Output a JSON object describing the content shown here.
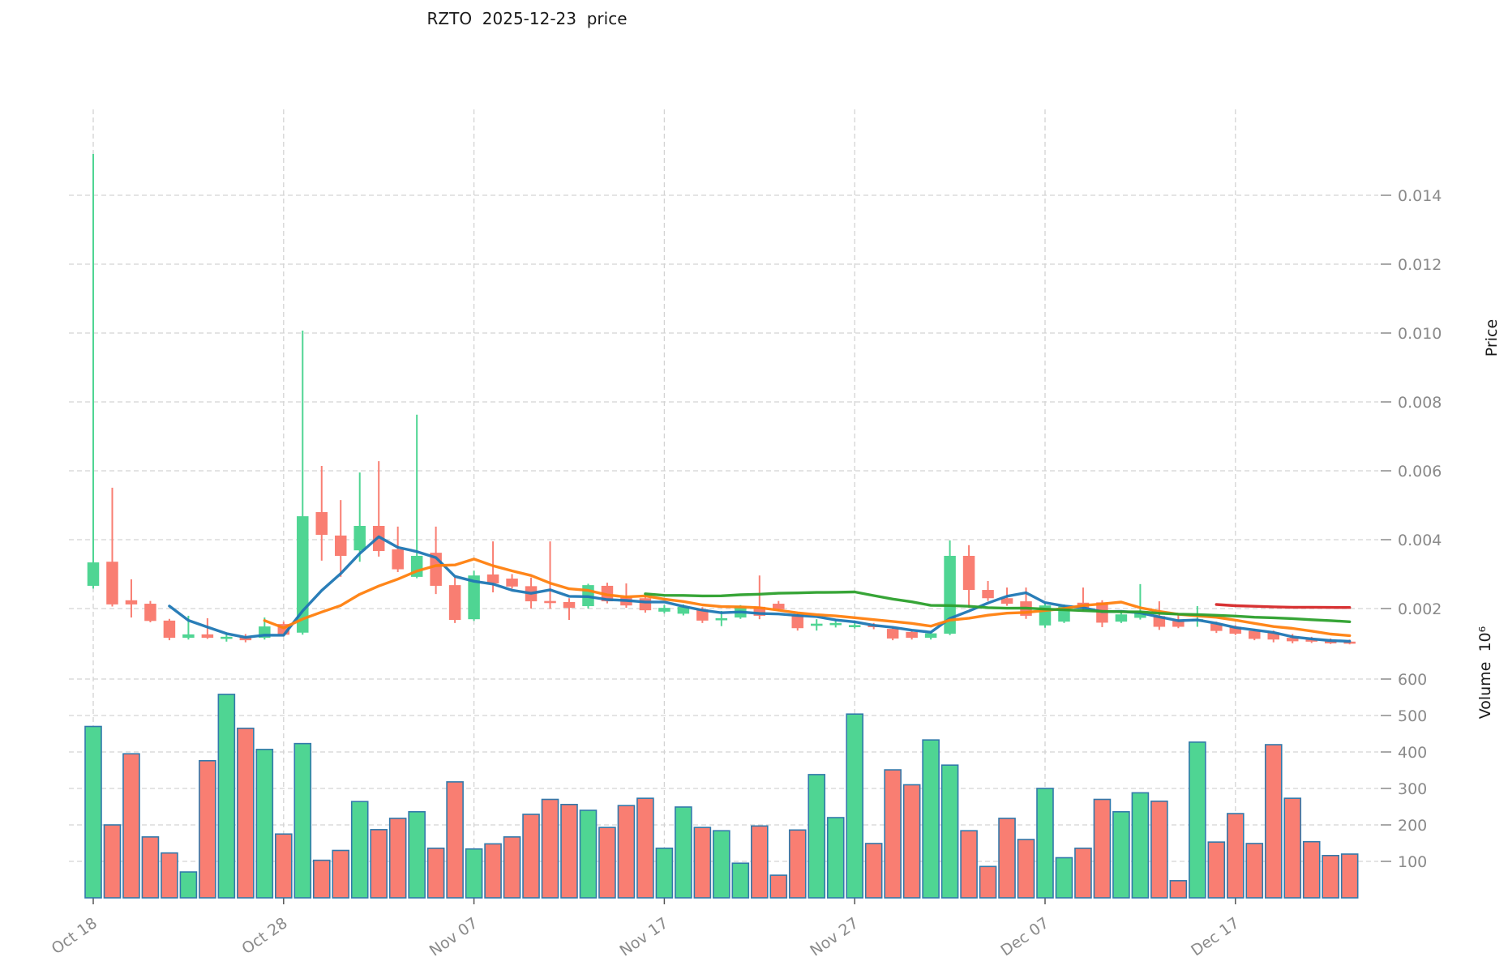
{
  "header": {
    "title": "RZTO  2025-12-23  price"
  },
  "chart_data": {
    "type": "candlestick",
    "title": "RZTO  2025-12-23  price",
    "grid": true,
    "legend": false,
    "x_axis": {
      "tick_labels": [
        "Oct 18",
        "Oct 28",
        "Nov 07",
        "Nov 17",
        "Nov 27",
        "Dec 07",
        "Dec 17"
      ],
      "tick_indices": [
        0,
        10,
        20,
        30,
        40,
        50,
        60
      ]
    },
    "price_axis": {
      "label": "Price",
      "ticks": [
        0.002,
        0.004,
        0.006,
        0.008,
        0.01,
        0.012,
        0.014
      ],
      "range": [
        0.0009,
        0.0165
      ],
      "side": "right"
    },
    "volume_axis": {
      "label": "Volume  10⁶",
      "ticks": [
        100,
        200,
        300,
        400,
        500,
        600
      ],
      "unit": "millions",
      "range": [
        0,
        680
      ],
      "side": "right"
    },
    "dates": [
      "2025-10-18",
      "2025-10-19",
      "2025-10-20",
      "2025-10-21",
      "2025-10-22",
      "2025-10-23",
      "2025-10-24",
      "2025-10-25",
      "2025-10-26",
      "2025-10-27",
      "2025-10-28",
      "2025-10-29",
      "2025-10-30",
      "2025-10-31",
      "2025-11-01",
      "2025-11-02",
      "2025-11-03",
      "2025-11-04",
      "2025-11-05",
      "2025-11-06",
      "2025-11-07",
      "2025-11-08",
      "2025-11-09",
      "2025-11-10",
      "2025-11-11",
      "2025-11-12",
      "2025-11-13",
      "2025-11-14",
      "2025-11-15",
      "2025-11-16",
      "2025-11-17",
      "2025-11-18",
      "2025-11-19",
      "2025-11-20",
      "2025-11-21",
      "2025-11-22",
      "2025-11-23",
      "2025-11-24",
      "2025-11-25",
      "2025-11-26",
      "2025-11-27",
      "2025-11-28",
      "2025-11-29",
      "2025-11-30",
      "2025-12-01",
      "2025-12-02",
      "2025-12-03",
      "2025-12-04",
      "2025-12-05",
      "2025-12-06",
      "2025-12-07",
      "2025-12-08",
      "2025-12-09",
      "2025-12-10",
      "2025-12-11",
      "2025-12-12",
      "2025-12-13",
      "2025-12-14",
      "2025-12-15",
      "2025-12-16",
      "2025-12-17",
      "2025-12-18",
      "2025-12-19",
      "2025-12-20",
      "2025-12-21",
      "2025-12-22",
      "2025-12-23"
    ],
    "open": [
      0.00266,
      0.00336,
      0.00224,
      0.00214,
      0.00165,
      0.00115,
      0.00125,
      0.00112,
      0.00118,
      0.00115,
      0.00155,
      0.0013,
      0.0048,
      0.00412,
      0.00369,
      0.0044,
      0.00372,
      0.00292,
      0.00362,
      0.00268,
      0.00169,
      0.00299,
      0.00287,
      0.00265,
      0.00222,
      0.00219,
      0.00207,
      0.00266,
      0.00232,
      0.0023,
      0.00191,
      0.00185,
      0.00198,
      0.00168,
      0.00174,
      0.00205,
      0.00214,
      0.00181,
      0.0015,
      0.00152,
      0.0015,
      0.00152,
      0.00141,
      0.00132,
      0.00115,
      0.00127,
      0.00353,
      0.00254,
      0.0023,
      0.00221,
      0.00151,
      0.00162,
      0.00217,
      0.00218,
      0.00162,
      0.00173,
      0.00178,
      0.00164,
      0.00165,
      0.00156,
      0.00147,
      0.00135,
      0.0013,
      0.00115,
      0.0011,
      0.00105,
      0.00104
    ],
    "high": [
      0.0152,
      0.00551,
      0.00285,
      0.00222,
      0.0017,
      0.00179,
      0.00172,
      0.0013,
      0.00126,
      0.00174,
      0.00162,
      0.01007,
      0.00614,
      0.00515,
      0.00595,
      0.00628,
      0.00438,
      0.00763,
      0.00438,
      0.0029,
      0.0031,
      0.00395,
      0.003,
      0.0029,
      0.00395,
      0.0023,
      0.00272,
      0.00275,
      0.00273,
      0.0024,
      0.0021,
      0.00212,
      0.00204,
      0.00193,
      0.0021,
      0.00296,
      0.00222,
      0.00186,
      0.00169,
      0.0017,
      0.00161,
      0.00158,
      0.00145,
      0.00138,
      0.00135,
      0.00398,
      0.00384,
      0.0028,
      0.00261,
      0.00261,
      0.00217,
      0.00212,
      0.00261,
      0.00224,
      0.00192,
      0.00271,
      0.00221,
      0.00183,
      0.00207,
      0.00162,
      0.00152,
      0.00141,
      0.00136,
      0.00126,
      0.00118,
      0.00113,
      0.0011
    ],
    "low": [
      0.00258,
      0.00206,
      0.00174,
      0.0016,
      0.00108,
      0.0011,
      0.00112,
      0.00104,
      0.00102,
      0.0011,
      0.0012,
      0.00124,
      0.00339,
      0.00292,
      0.00336,
      0.00351,
      0.00306,
      0.00288,
      0.00242,
      0.00158,
      0.00164,
      0.00247,
      0.00258,
      0.002,
      0.00199,
      0.00167,
      0.002,
      0.00215,
      0.00202,
      0.00188,
      0.00186,
      0.0018,
      0.00158,
      0.00149,
      0.0017,
      0.00169,
      0.00192,
      0.00136,
      0.00136,
      0.00145,
      0.00142,
      0.0014,
      0.00108,
      0.0011,
      0.0011,
      0.00123,
      0.00202,
      0.00222,
      0.00208,
      0.0017,
      0.00144,
      0.00158,
      0.00193,
      0.00146,
      0.00158,
      0.00168,
      0.00138,
      0.00143,
      0.00147,
      0.00129,
      0.00123,
      0.00108,
      0.00102,
      0.00099,
      0.001,
      0.00097,
      0.00096
    ],
    "close": [
      0.00334,
      0.00212,
      0.00212,
      0.00164,
      0.00115,
      0.00125,
      0.00115,
      0.00118,
      0.00108,
      0.00148,
      0.00124,
      0.00468,
      0.00414,
      0.00353,
      0.0044,
      0.00367,
      0.00314,
      0.00353,
      0.00266,
      0.00167,
      0.00296,
      0.00273,
      0.00264,
      0.00221,
      0.00218,
      0.00202,
      0.00268,
      0.00221,
      0.00209,
      0.00195,
      0.00202,
      0.00205,
      0.00165,
      0.00172,
      0.00207,
      0.00179,
      0.00198,
      0.00143,
      0.00156,
      0.00158,
      0.00152,
      0.00148,
      0.00113,
      0.00115,
      0.00128,
      0.00353,
      0.00254,
      0.0023,
      0.00214,
      0.00179,
      0.00209,
      0.00206,
      0.00202,
      0.00159,
      0.00183,
      0.00188,
      0.00147,
      0.00147,
      0.00169,
      0.00135,
      0.00127,
      0.00112,
      0.0011,
      0.00105,
      0.00106,
      0.00102,
      0.00102
    ],
    "volume_millions": [
      470,
      200,
      395,
      167,
      123,
      71,
      376,
      558,
      465,
      407,
      175,
      423,
      103,
      130,
      264,
      187,
      218,
      236,
      136,
      318,
      134,
      148,
      167,
      229,
      270,
      256,
      240,
      193,
      253,
      273,
      136,
      249,
      193,
      184,
      95,
      197,
      62,
      186,
      338,
      220,
      504,
      149,
      351,
      310,
      433,
      364,
      184,
      86,
      218,
      160,
      300,
      110,
      136,
      270,
      236,
      288,
      265,
      47,
      427,
      153,
      231,
      149,
      420,
      273,
      154,
      116,
      120
    ],
    "moving_averages": {
      "windows": [
        5,
        10,
        30,
        60
      ],
      "colors": [
        "#1f77b4",
        "#ff7f0e",
        "#2ca02c",
        "#d62728"
      ]
    },
    "colors": {
      "up": "#4fd593",
      "down": "#f97e72",
      "volume_border": "#3279ab",
      "grid": "#d3d3d3",
      "tick_text": "#8a8a8a",
      "title_text": "#1a1a1a",
      "background": "#ffffff"
    }
  }
}
